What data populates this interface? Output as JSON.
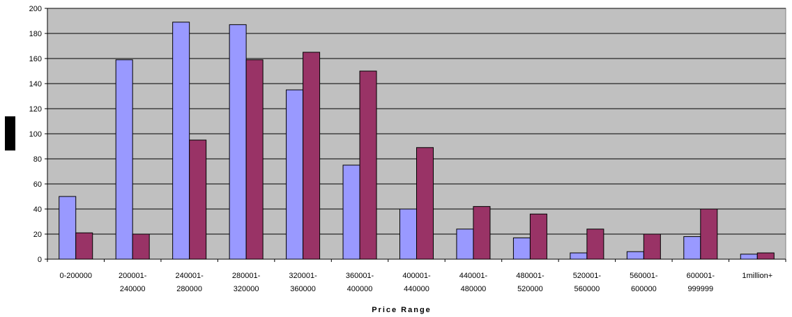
{
  "chart_data": {
    "type": "bar",
    "title": "",
    "xlabel": "Price Range",
    "ylabel": "",
    "ylim": [
      0,
      200
    ],
    "y_ticks": [
      0,
      20,
      40,
      60,
      80,
      100,
      120,
      140,
      160,
      180,
      200
    ],
    "grid": true,
    "legend": "none",
    "plot_background": "#c0c0c0",
    "categories": [
      [
        "0-200000"
      ],
      [
        "200001-",
        "240000"
      ],
      [
        "240001-",
        "280000"
      ],
      [
        "280001-",
        "320000"
      ],
      [
        "320001-",
        "360000"
      ],
      [
        "360001-",
        "400000"
      ],
      [
        "400001-",
        "440000"
      ],
      [
        "440001-",
        "480000"
      ],
      [
        "480001-",
        "520000"
      ],
      [
        "520001-",
        "560000"
      ],
      [
        "560001-",
        "600000"
      ],
      [
        "600001-",
        "999999"
      ],
      [
        "1million+"
      ]
    ],
    "series": [
      {
        "color": "#9999ff",
        "values": [
          50,
          159,
          189,
          187,
          135,
          75,
          40,
          24,
          17,
          5,
          6,
          18,
          4
        ]
      },
      {
        "color": "#993366",
        "values": [
          21,
          20,
          95,
          159,
          165,
          150,
          89,
          42,
          36,
          24,
          20,
          40,
          5
        ]
      }
    ],
    "ylabel_box_color": "#000000"
  }
}
